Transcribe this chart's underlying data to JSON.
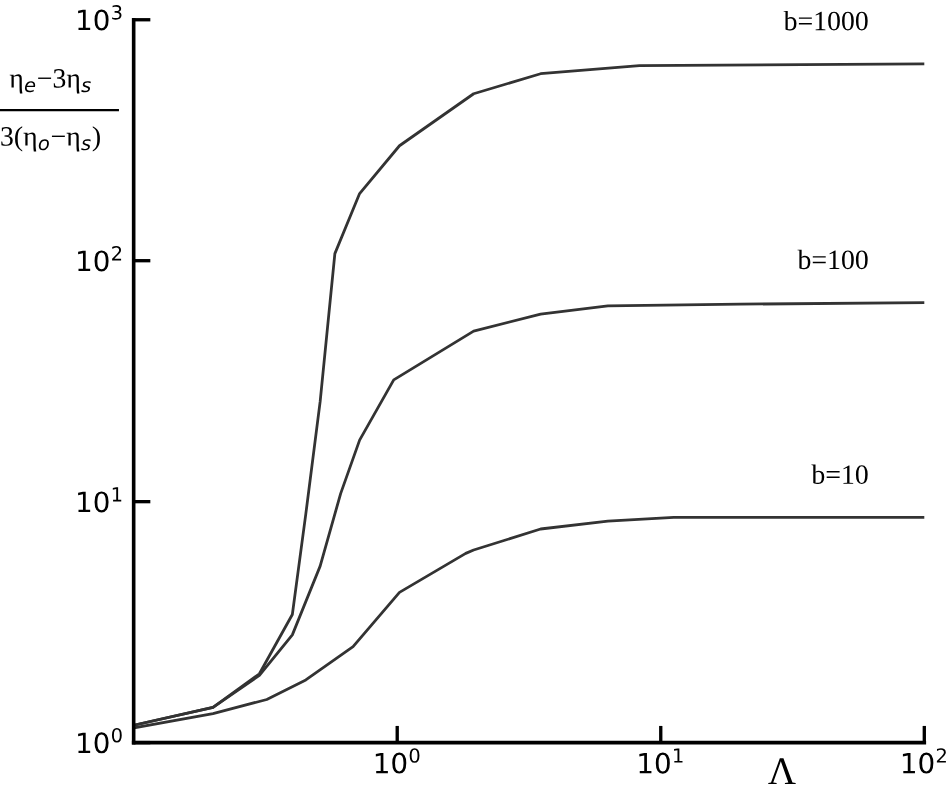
{
  "chart_data": {
    "type": "line",
    "ylabel": "η$_{e}$−3η$_{s}$\n3(η$_{o}$−η$_{s}$)",
    "xlabel": "Λ",
    "log": "xy",
    "xlim": [
      0.1,
      100
    ],
    "ylim": [
      1,
      1000
    ],
    "xticks": [
      {
        "value": 1,
        "label": "10$^{0}$"
      },
      {
        "value": 10,
        "label": "10$^{1}$"
      },
      {
        "value": 100,
        "label": "10$^{2}$"
      }
    ],
    "yticks": [
      {
        "value": 1,
        "label": "10$^{0}$"
      },
      {
        "value": 10,
        "label": "10$^{1}$"
      },
      {
        "value": 100,
        "label": "10$^{2}$"
      },
      {
        "value": 1000,
        "label": "10$^{3}$"
      }
    ],
    "grid": false,
    "legend": false,
    "marker": "none",
    "line_style": "solid",
    "series": [
      {
        "name": "b=1000",
        "color": "#333333",
        "x": [
          0.1,
          0.2,
          0.3,
          0.4,
          0.45,
          0.51,
          0.58,
          0.72,
          1.02,
          1.95,
          3.5,
          8.3,
          100
        ],
        "values": [
          1.18,
          1.4,
          1.93,
          3.4,
          8.9,
          26,
          107,
          190,
          300,
          493,
          597,
          645,
          656
        ]
      },
      {
        "name": "b=100",
        "color": "#333333",
        "x": [
          0.1,
          0.2,
          0.3,
          0.4,
          0.51,
          0.61,
          0.72,
          0.97,
          1.95,
          3.5,
          6.3,
          20,
          100
        ],
        "values": [
          1.18,
          1.4,
          1.9,
          2.8,
          5.4,
          10.8,
          18,
          32,
          51,
          60,
          65,
          66,
          67
        ]
      },
      {
        "name": "b=10",
        "color": "#333333",
        "x": [
          0.1,
          0.2,
          0.32,
          0.45,
          0.68,
          1.02,
          1.82,
          1.95,
          3.5,
          6.3,
          11.2,
          100
        ],
        "values": [
          1.15,
          1.32,
          1.51,
          1.82,
          2.5,
          4.2,
          6.1,
          6.3,
          7.7,
          8.3,
          8.6,
          8.6
        ]
      }
    ]
  }
}
